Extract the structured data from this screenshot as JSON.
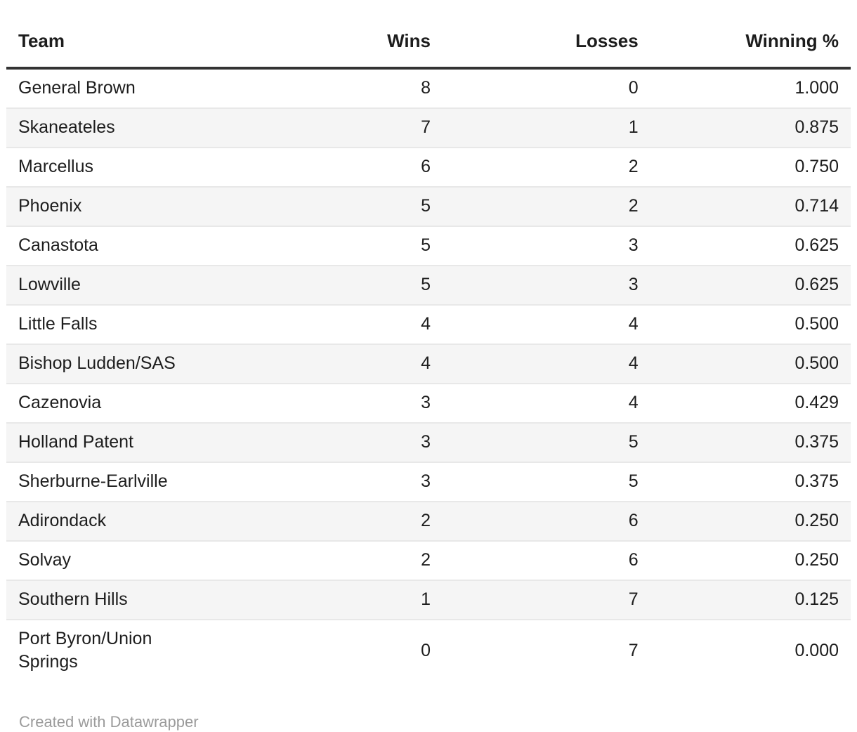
{
  "chart_data": {
    "type": "table",
    "columns": [
      {
        "key": "team",
        "label": "Team",
        "align": "left"
      },
      {
        "key": "wins",
        "label": "Wins",
        "align": "right"
      },
      {
        "key": "losses",
        "label": "Losses",
        "align": "right"
      },
      {
        "key": "winning_pct",
        "label": "Winning %",
        "align": "right"
      }
    ],
    "rows": [
      {
        "team": "General Brown",
        "wins": 8,
        "losses": 0,
        "winning_pct": "1.000"
      },
      {
        "team": "Skaneateles",
        "wins": 7,
        "losses": 1,
        "winning_pct": "0.875"
      },
      {
        "team": "Marcellus",
        "wins": 6,
        "losses": 2,
        "winning_pct": "0.750"
      },
      {
        "team": "Phoenix",
        "wins": 5,
        "losses": 2,
        "winning_pct": "0.714"
      },
      {
        "team": "Canastota",
        "wins": 5,
        "losses": 3,
        "winning_pct": "0.625"
      },
      {
        "team": "Lowville",
        "wins": 5,
        "losses": 3,
        "winning_pct": "0.625"
      },
      {
        "team": "Little Falls",
        "wins": 4,
        "losses": 4,
        "winning_pct": "0.500"
      },
      {
        "team": "Bishop Ludden/SAS",
        "wins": 4,
        "losses": 4,
        "winning_pct": "0.500"
      },
      {
        "team": "Cazenovia",
        "wins": 3,
        "losses": 4,
        "winning_pct": "0.429"
      },
      {
        "team": "Holland Patent",
        "wins": 3,
        "losses": 5,
        "winning_pct": "0.375"
      },
      {
        "team": "Sherburne-Earlville",
        "wins": 3,
        "losses": 5,
        "winning_pct": "0.375"
      },
      {
        "team": "Adirondack",
        "wins": 2,
        "losses": 6,
        "winning_pct": "0.250"
      },
      {
        "team": "Solvay",
        "wins": 2,
        "losses": 6,
        "winning_pct": "0.250"
      },
      {
        "team": "Southern Hills",
        "wins": 1,
        "losses": 7,
        "winning_pct": "0.125"
      },
      {
        "team": "Port Byron/Union Springs",
        "wins": 0,
        "losses": 7,
        "winning_pct": "0.000"
      }
    ],
    "layout_hints": {
      "striped_rows": true,
      "stripe_on": "even",
      "header_rule": true
    }
  },
  "footer": {
    "credit": "Created with Datawrapper"
  },
  "colors": {
    "text": "#1d1d1d",
    "header_border": "#333333",
    "row_divider": "#e8e8e8",
    "stripe_bg": "#f5f5f5",
    "credit_text": "#9b9b9b",
    "background": "#ffffff"
  }
}
